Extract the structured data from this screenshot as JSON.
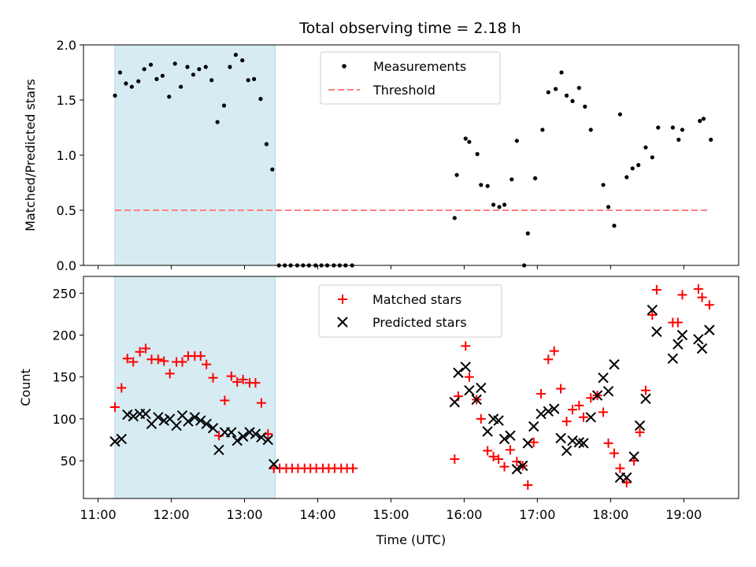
{
  "title": "Total observing time = 2.18 h",
  "colors": {
    "shade": "#add8e6",
    "threshold": "#ff7f7f",
    "matched": "#ff0000",
    "predicted": "#000000",
    "measurement": "#000000"
  },
  "chart_data": [
    {
      "type": "scatter",
      "title": "Total observing time = 2.18 h",
      "xlabel": "",
      "ylabel": "Matched/Predicted stars",
      "xlim_hours": [
        10.8,
        19.75
      ],
      "ylim": [
        0,
        2.0
      ],
      "yticks": [
        0.0,
        0.5,
        1.0,
        1.5,
        2.0
      ],
      "ytick_labels": [
        "0.0",
        "0.5",
        "1.0",
        "1.5",
        "2.0"
      ],
      "shaded_interval_hours": [
        11.23,
        13.42
      ],
      "legend": {
        "position": "top-center",
        "entries": [
          "Measurements",
          "Threshold"
        ]
      },
      "threshold": {
        "name": "Threshold",
        "y": 0.5,
        "x_range_hours": [
          11.23,
          19.35
        ]
      },
      "series": [
        {
          "name": "Measurements",
          "x": [
            11.23,
            11.3,
            11.38,
            11.46,
            11.55,
            11.63,
            11.72,
            11.8,
            11.88,
            11.97,
            12.05,
            12.13,
            12.22,
            12.3,
            12.38,
            12.47,
            12.55,
            12.63,
            12.72,
            12.8,
            12.88,
            12.97,
            13.05,
            13.13,
            13.22,
            13.3,
            13.38,
            13.47,
            13.55,
            13.63,
            13.72,
            13.8,
            13.88,
            13.97,
            14.05,
            14.13,
            14.22,
            14.3,
            14.38,
            14.47,
            15.87,
            15.9,
            16.02,
            16.07,
            16.18,
            16.23,
            16.32,
            16.4,
            16.48,
            16.55,
            16.65,
            16.72,
            16.82,
            16.87,
            16.97,
            17.07,
            17.15,
            17.25,
            17.33,
            17.4,
            17.48,
            17.57,
            17.65,
            17.73,
            17.9,
            17.97,
            18.05,
            18.13,
            18.22,
            18.3,
            18.38,
            18.48,
            18.57,
            18.65,
            18.85,
            18.93,
            18.98,
            19.22,
            19.27,
            19.37
          ],
          "y": [
            1.54,
            1.75,
            1.65,
            1.62,
            1.67,
            1.78,
            1.82,
            1.69,
            1.72,
            1.53,
            1.83,
            1.62,
            1.8,
            1.73,
            1.78,
            1.8,
            1.68,
            1.3,
            1.45,
            1.8,
            1.91,
            1.86,
            1.68,
            1.69,
            1.51,
            1.1,
            0.87,
            0.0,
            0.0,
            0.0,
            0.0,
            0.0,
            0.0,
            0.0,
            0.0,
            0.0,
            0.0,
            0.0,
            0.0,
            0.0,
            0.43,
            0.82,
            1.15,
            1.12,
            1.01,
            0.73,
            0.72,
            0.55,
            0.53,
            0.55,
            0.78,
            1.13,
            0.0,
            0.29,
            0.79,
            1.23,
            1.57,
            1.6,
            1.75,
            1.54,
            1.49,
            1.61,
            1.44,
            1.23,
            0.73,
            0.53,
            0.36,
            1.37,
            0.8,
            0.88,
            0.91,
            1.07,
            0.98,
            1.25,
            1.25,
            1.14,
            1.23,
            1.31,
            1.33,
            1.14
          ]
        }
      ]
    },
    {
      "type": "scatter",
      "title": "",
      "xlabel": "Time (UTC)",
      "ylabel": "Count",
      "xlim_hours": [
        10.8,
        19.75
      ],
      "ylim": [
        5,
        270
      ],
      "xticks_hours": [
        11,
        12,
        13,
        14,
        15,
        16,
        17,
        18,
        19
      ],
      "xtick_labels": [
        "11:00",
        "12:00",
        "13:00",
        "14:00",
        "15:00",
        "16:00",
        "17:00",
        "18:00",
        "19:00"
      ],
      "yticks": [
        50,
        100,
        150,
        200,
        250
      ],
      "ytick_labels": [
        "50",
        "100",
        "150",
        "200",
        "250"
      ],
      "shaded_interval_hours": [
        11.23,
        13.42
      ],
      "legend": {
        "position": "top-center",
        "entries": [
          "Matched stars",
          "Predicted stars"
        ]
      },
      "series": [
        {
          "name": "Matched stars",
          "marker": "+",
          "x": [
            11.23,
            11.32,
            11.4,
            11.48,
            11.57,
            11.65,
            11.73,
            11.82,
            11.9,
            11.98,
            12.07,
            12.15,
            12.23,
            12.32,
            12.4,
            12.48,
            12.57,
            12.65,
            12.73,
            12.82,
            12.9,
            12.98,
            13.07,
            13.15,
            13.23,
            13.32,
            13.4,
            13.48,
            13.57,
            13.65,
            13.73,
            13.82,
            13.9,
            13.98,
            14.07,
            14.15,
            14.23,
            14.32,
            14.4,
            14.48,
            15.87,
            15.92,
            16.02,
            16.07,
            16.17,
            16.23,
            16.32,
            16.4,
            16.47,
            16.55,
            16.63,
            16.72,
            16.8,
            16.87,
            16.95,
            17.05,
            17.15,
            17.23,
            17.32,
            17.4,
            17.48,
            17.57,
            17.63,
            17.73,
            17.82,
            17.9,
            17.97,
            18.05,
            18.13,
            18.22,
            18.32,
            18.4,
            18.48,
            18.57,
            18.63,
            18.85,
            18.92,
            18.98,
            19.2,
            19.25,
            19.35
          ],
          "y": [
            114,
            137,
            172,
            168,
            180,
            184,
            171,
            171,
            169,
            154,
            168,
            168,
            175,
            175,
            175,
            165,
            149,
            80,
            122,
            151,
            144,
            147,
            143,
            143,
            119,
            82,
            41,
            41,
            41,
            41,
            41,
            41,
            41,
            41,
            41,
            41,
            41,
            41,
            41,
            41,
            52,
            127,
            187,
            150,
            123,
            100,
            62,
            55,
            52,
            43,
            63,
            49,
            44,
            21,
            72,
            130,
            171,
            181,
            136,
            97,
            111,
            116,
            102,
            125,
            128,
            108,
            71,
            59,
            41,
            24,
            50,
            84,
            134,
            224,
            254,
            215,
            215,
            248,
            255,
            245,
            236
          ]
        },
        {
          "name": "Predicted stars",
          "marker": "x",
          "x": [
            11.23,
            11.32,
            11.4,
            11.48,
            11.57,
            11.65,
            11.73,
            11.82,
            11.9,
            11.98,
            12.07,
            12.15,
            12.23,
            12.32,
            12.4,
            12.48,
            12.57,
            12.65,
            12.73,
            12.82,
            12.9,
            12.98,
            13.07,
            13.15,
            13.23,
            13.32,
            13.4,
            15.87,
            15.92,
            16.02,
            16.07,
            16.17,
            16.23,
            16.32,
            16.4,
            16.47,
            16.55,
            16.63,
            16.72,
            16.8,
            16.87,
            16.95,
            17.05,
            17.15,
            17.23,
            17.32,
            17.4,
            17.48,
            17.57,
            17.63,
            17.73,
            17.82,
            17.9,
            17.97,
            18.05,
            18.13,
            18.22,
            18.32,
            18.4,
            18.48,
            18.57,
            18.63,
            18.85,
            18.92,
            18.98,
            19.2,
            19.25,
            19.35
          ],
          "y": [
            73,
            76,
            105,
            103,
            106,
            106,
            94,
            102,
            98,
            100,
            92,
            104,
            97,
            102,
            98,
            94,
            89,
            63,
            84,
            84,
            74,
            79,
            84,
            82,
            78,
            75,
            46,
            120,
            155,
            162,
            134,
            123,
            137,
            85,
            100,
            98,
            76,
            80,
            40,
            44,
            71,
            91,
            106,
            109,
            112,
            77,
            62,
            74,
            72,
            71,
            102,
            128,
            149,
            133,
            165,
            30,
            30,
            55,
            92,
            124,
            230,
            204,
            172,
            189,
            200,
            195,
            184,
            206
          ]
        }
      ]
    }
  ]
}
